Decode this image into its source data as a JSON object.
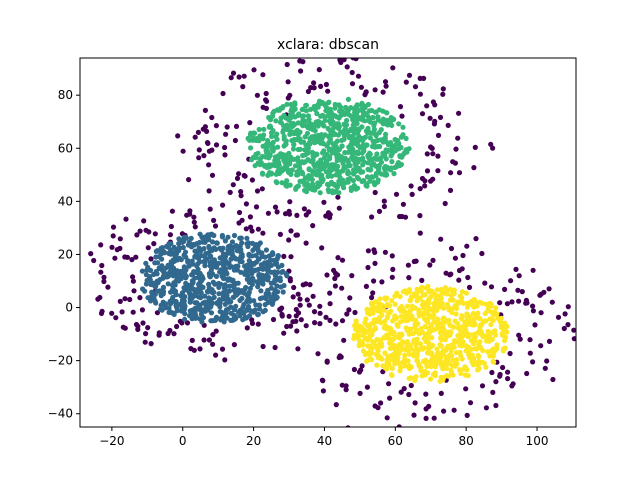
{
  "chart_data": {
    "type": "scatter",
    "title": "xclara: dbscan",
    "xlabel": "",
    "ylabel": "",
    "xlim": [
      -29,
      111
    ],
    "ylim": [
      -45,
      94
    ],
    "xticks": [
      -20,
      0,
      20,
      40,
      60,
      80,
      100
    ],
    "yticks": [
      -40,
      -20,
      0,
      20,
      40,
      60,
      80
    ],
    "grid": false,
    "legend": "none",
    "colors": {
      "noise": "#440154",
      "cluster_a": "#31688e",
      "cluster_b": "#35b779",
      "cluster_c": "#fde725"
    },
    "series": [
      {
        "key": "cluster_a",
        "center": [
          9,
          11
        ],
        "radius": [
          21,
          17
        ],
        "count": 750
      },
      {
        "key": "cluster_b",
        "center": [
          41,
          61
        ],
        "radius": [
          23,
          18
        ],
        "count": 800
      },
      {
        "key": "cluster_c",
        "center": [
          70,
          -10
        ],
        "radius": [
          22,
          18
        ],
        "count": 750
      },
      {
        "key": "noise",
        "groups": [
          {
            "center": [
              9,
              11
            ],
            "radius": [
              31,
              22
            ],
            "count": 160
          },
          {
            "center": [
              42,
              62
            ],
            "radius": [
              34,
              26
            ],
            "count": 170
          },
          {
            "center": [
              70,
              -10
            ],
            "radius": [
              33,
              28
            ],
            "count": 170
          }
        ]
      }
    ]
  }
}
